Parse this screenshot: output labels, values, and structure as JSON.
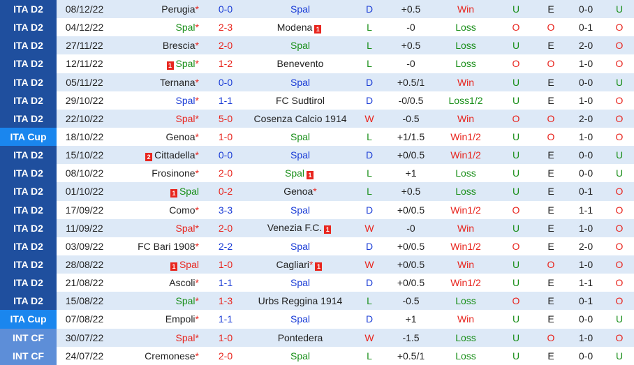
{
  "colors": {
    "league_bg": "#1f4f9e",
    "cup_bg": "#1a86ee",
    "intcf_bg": "#5d8ed8",
    "red": "#e8251e",
    "green": "#1a8f1a",
    "blue": "#1a3cd6",
    "row_alt": "#dde9f7"
  },
  "rows": [
    {
      "league": "ITA D2",
      "date": "08/12/22",
      "home": "Perugia",
      "home_star": "*",
      "home_card": "",
      "home_color": "dark",
      "score": "0-0",
      "score_color": "blue",
      "away": "Spal",
      "away_star": "",
      "away_card": "",
      "away_color": "blue",
      "res": "D",
      "handicap": "+0.5",
      "hres": "Win",
      "ou1": "U",
      "ou2": "E",
      "ht": "0-0",
      "ou3": "U"
    },
    {
      "league": "ITA D2",
      "date": "04/12/22",
      "home": "Spal",
      "home_star": "*",
      "home_card": "",
      "home_color": "green",
      "score": "2-3",
      "score_color": "red",
      "away": "Modena",
      "away_star": "",
      "away_card": "1",
      "away_color": "dark",
      "res": "L",
      "handicap": "-0",
      "hres": "Loss",
      "ou1": "O",
      "ou2": "O",
      "ht": "0-1",
      "ou3": "O"
    },
    {
      "league": "ITA D2",
      "date": "27/11/22",
      "home": "Brescia",
      "home_star": "*",
      "home_card": "",
      "home_color": "dark",
      "score": "2-0",
      "score_color": "red",
      "away": "Spal",
      "away_star": "",
      "away_card": "",
      "away_color": "green",
      "res": "L",
      "handicap": "+0.5",
      "hres": "Loss",
      "ou1": "U",
      "ou2": "E",
      "ht": "2-0",
      "ou3": "O"
    },
    {
      "league": "ITA D2",
      "date": "12/11/22",
      "home": "Spal",
      "home_star": "*",
      "home_card": "1",
      "home_color": "green",
      "score": "1-2",
      "score_color": "red",
      "away": "Benevento",
      "away_star": "",
      "away_card": "",
      "away_color": "dark",
      "res": "L",
      "handicap": "-0",
      "hres": "Loss",
      "ou1": "O",
      "ou2": "O",
      "ht": "1-0",
      "ou3": "O"
    },
    {
      "league": "ITA D2",
      "date": "05/11/22",
      "home": "Ternana",
      "home_star": "*",
      "home_card": "",
      "home_color": "dark",
      "score": "0-0",
      "score_color": "blue",
      "away": "Spal",
      "away_star": "",
      "away_card": "",
      "away_color": "blue",
      "res": "D",
      "handicap": "+0.5/1",
      "hres": "Win",
      "ou1": "U",
      "ou2": "E",
      "ht": "0-0",
      "ou3": "U"
    },
    {
      "league": "ITA D2",
      "date": "29/10/22",
      "home": "Spal",
      "home_star": "*",
      "home_card": "",
      "home_color": "blue",
      "score": "1-1",
      "score_color": "blue",
      "away": "FC Sudtirol",
      "away_star": "",
      "away_card": "",
      "away_color": "dark",
      "res": "D",
      "handicap": "-0/0.5",
      "hres": "Loss1/2",
      "ou1": "U",
      "ou2": "E",
      "ht": "1-0",
      "ou3": "O"
    },
    {
      "league": "ITA D2",
      "date": "22/10/22",
      "home": "Spal",
      "home_star": "*",
      "home_card": "",
      "home_color": "red",
      "score": "5-0",
      "score_color": "red",
      "away": "Cosenza Calcio 1914",
      "away_star": "",
      "away_card": "",
      "away_color": "dark",
      "res": "W",
      "handicap": "-0.5",
      "hres": "Win",
      "ou1": "O",
      "ou2": "O",
      "ht": "2-0",
      "ou3": "O"
    },
    {
      "league": "ITA Cup",
      "date": "18/10/22",
      "home": "Genoa",
      "home_star": "*",
      "home_card": "",
      "home_color": "dark",
      "score": "1-0",
      "score_color": "red",
      "away": "Spal",
      "away_star": "",
      "away_card": "",
      "away_color": "green",
      "res": "L",
      "handicap": "+1/1.5",
      "hres": "Win1/2",
      "ou1": "U",
      "ou2": "O",
      "ht": "1-0",
      "ou3": "O"
    },
    {
      "league": "ITA D2",
      "date": "15/10/22",
      "home": "Cittadella",
      "home_star": "*",
      "home_card": "2",
      "home_color": "dark",
      "score": "0-0",
      "score_color": "blue",
      "away": "Spal",
      "away_star": "",
      "away_card": "",
      "away_color": "blue",
      "res": "D",
      "handicap": "+0/0.5",
      "hres": "Win1/2",
      "ou1": "U",
      "ou2": "E",
      "ht": "0-0",
      "ou3": "U"
    },
    {
      "league": "ITA D2",
      "date": "08/10/22",
      "home": "Frosinone",
      "home_star": "*",
      "home_card": "",
      "home_color": "dark",
      "score": "2-0",
      "score_color": "red",
      "away": "Spal",
      "away_star": "",
      "away_card": "1",
      "away_color": "green",
      "res": "L",
      "handicap": "+1",
      "hres": "Loss",
      "ou1": "U",
      "ou2": "E",
      "ht": "0-0",
      "ou3": "U"
    },
    {
      "league": "ITA D2",
      "date": "01/10/22",
      "home": "Spal",
      "home_star": "",
      "home_card": "1",
      "home_color": "green",
      "score": "0-2",
      "score_color": "red",
      "away": "Genoa",
      "away_star": "*",
      "away_card": "",
      "away_color": "dark",
      "res": "L",
      "handicap": "+0.5",
      "hres": "Loss",
      "ou1": "U",
      "ou2": "E",
      "ht": "0-1",
      "ou3": "O"
    },
    {
      "league": "ITA D2",
      "date": "17/09/22",
      "home": "Como",
      "home_star": "*",
      "home_card": "",
      "home_color": "dark",
      "score": "3-3",
      "score_color": "blue",
      "away": "Spal",
      "away_star": "",
      "away_card": "",
      "away_color": "blue",
      "res": "D",
      "handicap": "+0/0.5",
      "hres": "Win1/2",
      "ou1": "O",
      "ou2": "E",
      "ht": "1-1",
      "ou3": "O"
    },
    {
      "league": "ITA D2",
      "date": "11/09/22",
      "home": "Spal",
      "home_star": "*",
      "home_card": "",
      "home_color": "red",
      "score": "2-0",
      "score_color": "red",
      "away": "Venezia F.C.",
      "away_star": "",
      "away_card": "1",
      "away_color": "dark",
      "res": "W",
      "handicap": "-0",
      "hres": "Win",
      "ou1": "U",
      "ou2": "E",
      "ht": "1-0",
      "ou3": "O"
    },
    {
      "league": "ITA D2",
      "date": "03/09/22",
      "home": "FC Bari 1908",
      "home_star": "*",
      "home_card": "",
      "home_color": "dark",
      "score": "2-2",
      "score_color": "blue",
      "away": "Spal",
      "away_star": "",
      "away_card": "",
      "away_color": "blue",
      "res": "D",
      "handicap": "+0/0.5",
      "hres": "Win1/2",
      "ou1": "O",
      "ou2": "E",
      "ht": "2-0",
      "ou3": "O"
    },
    {
      "league": "ITA D2",
      "date": "28/08/22",
      "home": "Spal",
      "home_star": "",
      "home_card": "1",
      "home_color": "red",
      "score": "1-0",
      "score_color": "red",
      "away": "Cagliari",
      "away_star": "*",
      "away_card": "1",
      "away_color": "dark",
      "res": "W",
      "handicap": "+0/0.5",
      "hres": "Win",
      "ou1": "U",
      "ou2": "O",
      "ht": "1-0",
      "ou3": "O"
    },
    {
      "league": "ITA D2",
      "date": "21/08/22",
      "home": "Ascoli",
      "home_star": "*",
      "home_card": "",
      "home_color": "dark",
      "score": "1-1",
      "score_color": "blue",
      "away": "Spal",
      "away_star": "",
      "away_card": "",
      "away_color": "blue",
      "res": "D",
      "handicap": "+0/0.5",
      "hres": "Win1/2",
      "ou1": "U",
      "ou2": "E",
      "ht": "1-1",
      "ou3": "O"
    },
    {
      "league": "ITA D2",
      "date": "15/08/22",
      "home": "Spal",
      "home_star": "*",
      "home_card": "",
      "home_color": "green",
      "score": "1-3",
      "score_color": "red",
      "away": "Urbs Reggina 1914",
      "away_star": "",
      "away_card": "",
      "away_color": "dark",
      "res": "L",
      "handicap": "-0.5",
      "hres": "Loss",
      "ou1": "O",
      "ou2": "E",
      "ht": "0-1",
      "ou3": "O"
    },
    {
      "league": "ITA Cup",
      "date": "07/08/22",
      "home": "Empoli",
      "home_star": "*",
      "home_card": "",
      "home_color": "dark",
      "score": "1-1",
      "score_color": "blue",
      "away": "Spal",
      "away_star": "",
      "away_card": "",
      "away_color": "blue",
      "res": "D",
      "handicap": "+1",
      "hres": "Win",
      "ou1": "U",
      "ou2": "E",
      "ht": "0-0",
      "ou3": "U"
    },
    {
      "league": "INT CF",
      "date": "30/07/22",
      "home": "Spal",
      "home_star": "*",
      "home_card": "",
      "home_color": "red",
      "score": "1-0",
      "score_color": "red",
      "away": "Pontedera",
      "away_star": "",
      "away_card": "",
      "away_color": "dark",
      "res": "W",
      "handicap": "-1.5",
      "hres": "Loss",
      "ou1": "U",
      "ou2": "O",
      "ht": "1-0",
      "ou3": "O"
    },
    {
      "league": "INT CF",
      "date": "24/07/22",
      "home": "Cremonese",
      "home_star": "*",
      "home_card": "",
      "home_color": "dark",
      "score": "2-0",
      "score_color": "red",
      "away": "Spal",
      "away_star": "",
      "away_card": "",
      "away_color": "green",
      "res": "L",
      "handicap": "+0.5/1",
      "hres": "Loss",
      "ou1": "U",
      "ou2": "E",
      "ht": "0-0",
      "ou3": "U"
    }
  ]
}
